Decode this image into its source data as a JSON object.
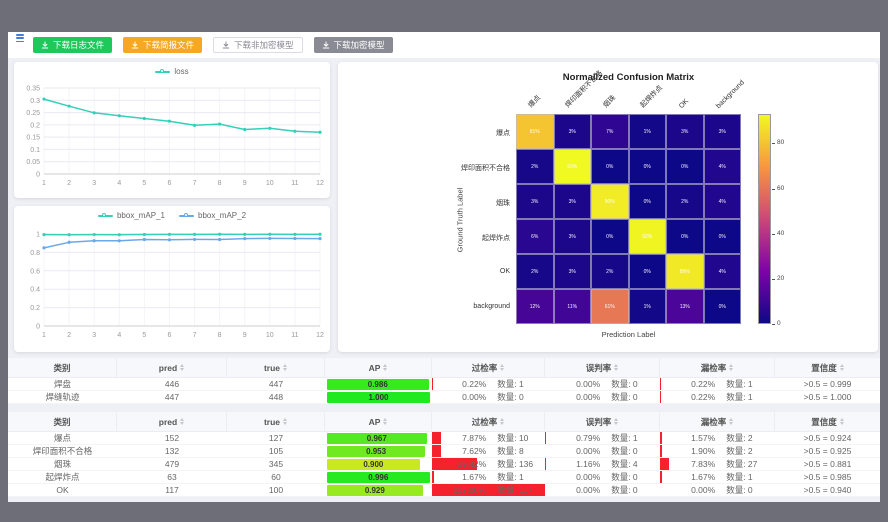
{
  "toolbar": {
    "buttons": [
      {
        "label": "下载日志文件",
        "style": "green"
      },
      {
        "label": "下载简报文件",
        "style": "orange"
      },
      {
        "label": "下载非加密模型",
        "style": "white"
      },
      {
        "label": "下载加密模型",
        "style": "gray"
      }
    ]
  },
  "colors": {
    "green_button": "#1ec95c",
    "orange_button": "#f7a823",
    "gray_button": "#8a8a94",
    "rate_bar": "#f5222d"
  },
  "chart_data": [
    {
      "id": "loss",
      "type": "line",
      "title": "",
      "legend_position": "top",
      "x": [
        1,
        2,
        3,
        4,
        5,
        6,
        7,
        8,
        9,
        10,
        11,
        12
      ],
      "series": [
        {
          "name": "loss",
          "color": "#35d0b8",
          "values": [
            0.305,
            0.276,
            0.249,
            0.237,
            0.226,
            0.215,
            0.198,
            0.203,
            0.181,
            0.186,
            0.174,
            0.17
          ]
        }
      ],
      "ylim": [
        0,
        0.35
      ],
      "yticks": [
        0,
        0.05,
        0.1,
        0.15,
        0.2,
        0.25,
        0.3,
        0.35
      ],
      "ytick_labels": [
        "0",
        "0.05",
        "0.1",
        "0.15",
        "0.2",
        "0.25",
        "0.3",
        "0.35"
      ],
      "grid": true
    },
    {
      "id": "bbox_map",
      "type": "line",
      "title": "",
      "legend_position": "top",
      "x": [
        1,
        2,
        3,
        4,
        5,
        6,
        7,
        8,
        9,
        10,
        11,
        12
      ],
      "series": [
        {
          "name": "bbox_mAP_1",
          "color": "#35d0b8",
          "values": [
            0.993,
            0.992,
            0.994,
            0.992,
            0.995,
            0.996,
            0.996,
            0.997,
            0.996,
            0.997,
            0.996,
            0.997
          ]
        },
        {
          "name": "bbox_mAP_2",
          "color": "#6aa9e8",
          "values": [
            0.849,
            0.91,
            0.927,
            0.926,
            0.94,
            0.937,
            0.941,
            0.94,
            0.95,
            0.952,
            0.951,
            0.95
          ]
        }
      ],
      "ylim": [
        0,
        1
      ],
      "yticks": [
        0,
        0.2,
        0.4,
        0.6,
        0.8,
        1
      ],
      "ytick_labels": [
        "0",
        "0.2",
        "0.4",
        "0.6",
        "0.8",
        "1"
      ],
      "grid": true
    },
    {
      "id": "confusion_matrix",
      "type": "heatmap",
      "title": "Normalized Confusion Matrix",
      "xlabel": "Prediction Label",
      "ylabel": "Ground Truth Label",
      "labels": [
        "爆点",
        "焊印面积不合格",
        "烟珠",
        "起焊炸点",
        "OK",
        "background"
      ],
      "rows_percent": [
        [
          81,
          3,
          7,
          1,
          3,
          3
        ],
        [
          2,
          93,
          0,
          0,
          0,
          4
        ],
        [
          3,
          3,
          90,
          0,
          2,
          4
        ],
        [
          6,
          3,
          0,
          92,
          0,
          0
        ],
        [
          2,
          3,
          2,
          0,
          89,
          4
        ],
        [
          12,
          11,
          61,
          1,
          13,
          0
        ]
      ],
      "colormap": "plasma",
      "colorbar_ticks": [
        0,
        20,
        40,
        60,
        80
      ],
      "colorbar_max": 93
    }
  ],
  "tables": {
    "count_label": "数量:",
    "headers": [
      {
        "label": "类别",
        "sortable": false
      },
      {
        "label": "pred",
        "sortable": true
      },
      {
        "label": "true",
        "sortable": true
      },
      {
        "label": "AP",
        "sortable": true
      },
      {
        "label": "过检率",
        "sortable": true
      },
      {
        "label": "误判率",
        "sortable": true
      },
      {
        "label": "漏检率",
        "sortable": true
      },
      {
        "label": "置信度",
        "sortable": true
      }
    ],
    "groups": [
      {
        "rows": [
          {
            "class": "焊盘",
            "pred": "446",
            "true": "447",
            "ap": "0.986",
            "rates": [
              {
                "pct": "0.22%",
                "count": "1"
              },
              {
                "pct": "0.00%",
                "count": "0"
              },
              {
                "pct": "0.22%",
                "count": "1"
              }
            ],
            "conf": ">0.5 = 0.999"
          },
          {
            "class": "焊缝轨迹",
            "pred": "447",
            "true": "448",
            "ap": "1.000",
            "rates": [
              {
                "pct": "0.00%",
                "count": "0"
              },
              {
                "pct": "0.00%",
                "count": "0"
              },
              {
                "pct": "0.22%",
                "count": "1"
              }
            ],
            "conf": ">0.5 = 1.000"
          }
        ]
      },
      {
        "rows": [
          {
            "class": "爆点",
            "pred": "152",
            "true": "127",
            "ap": "0.967",
            "rates": [
              {
                "pct": "7.87%",
                "count": "10"
              },
              {
                "pct": "0.79%",
                "count": "1"
              },
              {
                "pct": "1.57%",
                "count": "2"
              }
            ],
            "conf": ">0.5 = 0.924"
          },
          {
            "class": "焊印面积不合格",
            "pred": "132",
            "true": "105",
            "ap": "0.953",
            "rates": [
              {
                "pct": "7.62%",
                "count": "8"
              },
              {
                "pct": "0.00%",
                "count": "0"
              },
              {
                "pct": "1.90%",
                "count": "2"
              }
            ],
            "conf": ">0.5 = 0.925"
          },
          {
            "class": "烟珠",
            "pred": "479",
            "true": "345",
            "ap": "0.900",
            "rates": [
              {
                "pct": "39.42%",
                "count": "136"
              },
              {
                "pct": "1.16%",
                "count": "4"
              },
              {
                "pct": "7.83%",
                "count": "27"
              }
            ],
            "conf": ">0.5 = 0.881"
          },
          {
            "class": "起焊炸点",
            "pred": "63",
            "true": "60",
            "ap": "0.996",
            "rates": [
              {
                "pct": "1.67%",
                "count": "1"
              },
              {
                "pct": "0.00%",
                "count": "0"
              },
              {
                "pct": "1.67%",
                "count": "1"
              }
            ],
            "conf": ">0.5 = 0.985"
          },
          {
            "class": "OK",
            "pred": "117",
            "true": "100",
            "ap": "0.929",
            "rates": [
              {
                "pct": "117.00%",
                "count": "117"
              },
              {
                "pct": "0.00%",
                "count": "0"
              },
              {
                "pct": "0.00%",
                "count": "0"
              }
            ],
            "conf": ">0.5 = 0.940"
          }
        ]
      }
    ]
  }
}
